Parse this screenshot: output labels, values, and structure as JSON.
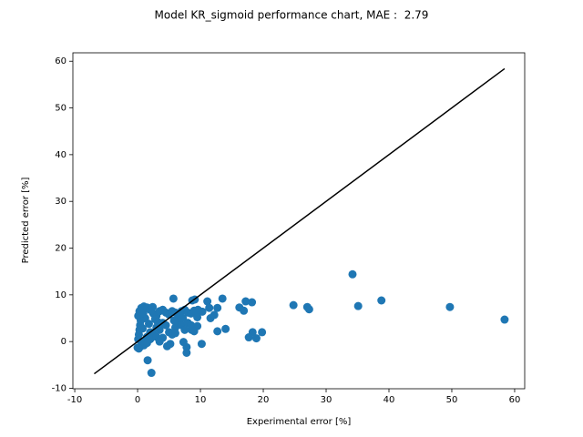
{
  "chart_data": {
    "type": "scatter",
    "title": "Model KR_sigmoid performance chart, MAE :  2.79",
    "x_label": "Experimental error [%]",
    "y_label": "Predicted error [%]",
    "color": "#1f77b4",
    "xlim": [
      -10.3,
      61.6
    ],
    "ylim": [
      -10.1,
      61.8
    ],
    "xticks": [
      -10,
      0,
      10,
      20,
      30,
      40,
      50,
      60
    ],
    "yticks": [
      -10,
      0,
      10,
      20,
      30,
      40,
      50,
      60
    ],
    "reference_line": {
      "x": [
        -6.9,
        58.4
      ],
      "y": [
        -6.9,
        58.4
      ],
      "color": "#000000"
    },
    "x": [
      34.2,
      35.1,
      38.8,
      49.7,
      58.4,
      24.8,
      27,
      27.3,
      19.8,
      18.3,
      18.9,
      17.7,
      18.2,
      17.2,
      16.2,
      16.9,
      14,
      12.7,
      13.5,
      12.7,
      11.1,
      11.4,
      11.6,
      12.2,
      10.2,
      10.3,
      9.6,
      9.1,
      8.7,
      7.8,
      7.8,
      7.3,
      8.6,
      9.5,
      2.2,
      1.6,
      4.7,
      5.2,
      5.7,
      0,
      0.1,
      0.2,
      0.3,
      0.4,
      0.5,
      0.1,
      0.3,
      0.6,
      1,
      1.5,
      2,
      2.5,
      3,
      3.5,
      4,
      4.5,
      5,
      5.5,
      6,
      6.5,
      7,
      7.5,
      8,
      8.5,
      9,
      9.5,
      1,
      1.5,
      2,
      2.5,
      3,
      3.5,
      4,
      4.5,
      5,
      5.5,
      6,
      6.5,
      7,
      7.5,
      8,
      8.5,
      9,
      0.5,
      1,
      1.5,
      2,
      3,
      4,
      3.5,
      6,
      2.8,
      1.8,
      1.2,
      0.8,
      5.8,
      7.2,
      0.2,
      2.4,
      0.9,
      3.2
    ],
    "y": [
      14.4,
      7.6,
      8.8,
      7.4,
      4.7,
      7.8,
      7.4,
      6.9,
      2,
      2,
      0.7,
      0.9,
      8.4,
      8.6,
      7.3,
      6.6,
      2.7,
      2.2,
      9.2,
      7.2,
      8.6,
      7.2,
      5,
      5.7,
      -0.5,
      6.4,
      6.8,
      9,
      8.8,
      -1.2,
      -2.4,
      -0.1,
      2.5,
      3.3,
      -6.7,
      -4,
      -1,
      -0.5,
      9.2,
      -1.3,
      0.5,
      1.5,
      2.5,
      3.5,
      4.5,
      5.5,
      6.5,
      7.2,
      7.5,
      7.3,
      6.8,
      6,
      5.5,
      6.5,
      6.8,
      6.2,
      5.8,
      6.5,
      6.2,
      5.5,
      6.5,
      6.8,
      6.2,
      6,
      6.6,
      5.2,
      0,
      1,
      2,
      1.5,
      3,
      2.5,
      4,
      3.5,
      2,
      1.5,
      3,
      4,
      3.5,
      2.5,
      4,
      3.5,
      2.2,
      -1,
      -0.8,
      -0.3,
      0.5,
      1,
      0.8,
      0,
      1.8,
      4.8,
      3.8,
      5,
      2.8,
      4.5,
      5,
      -1.5,
      7.4,
      6,
      4.2
    ]
  }
}
